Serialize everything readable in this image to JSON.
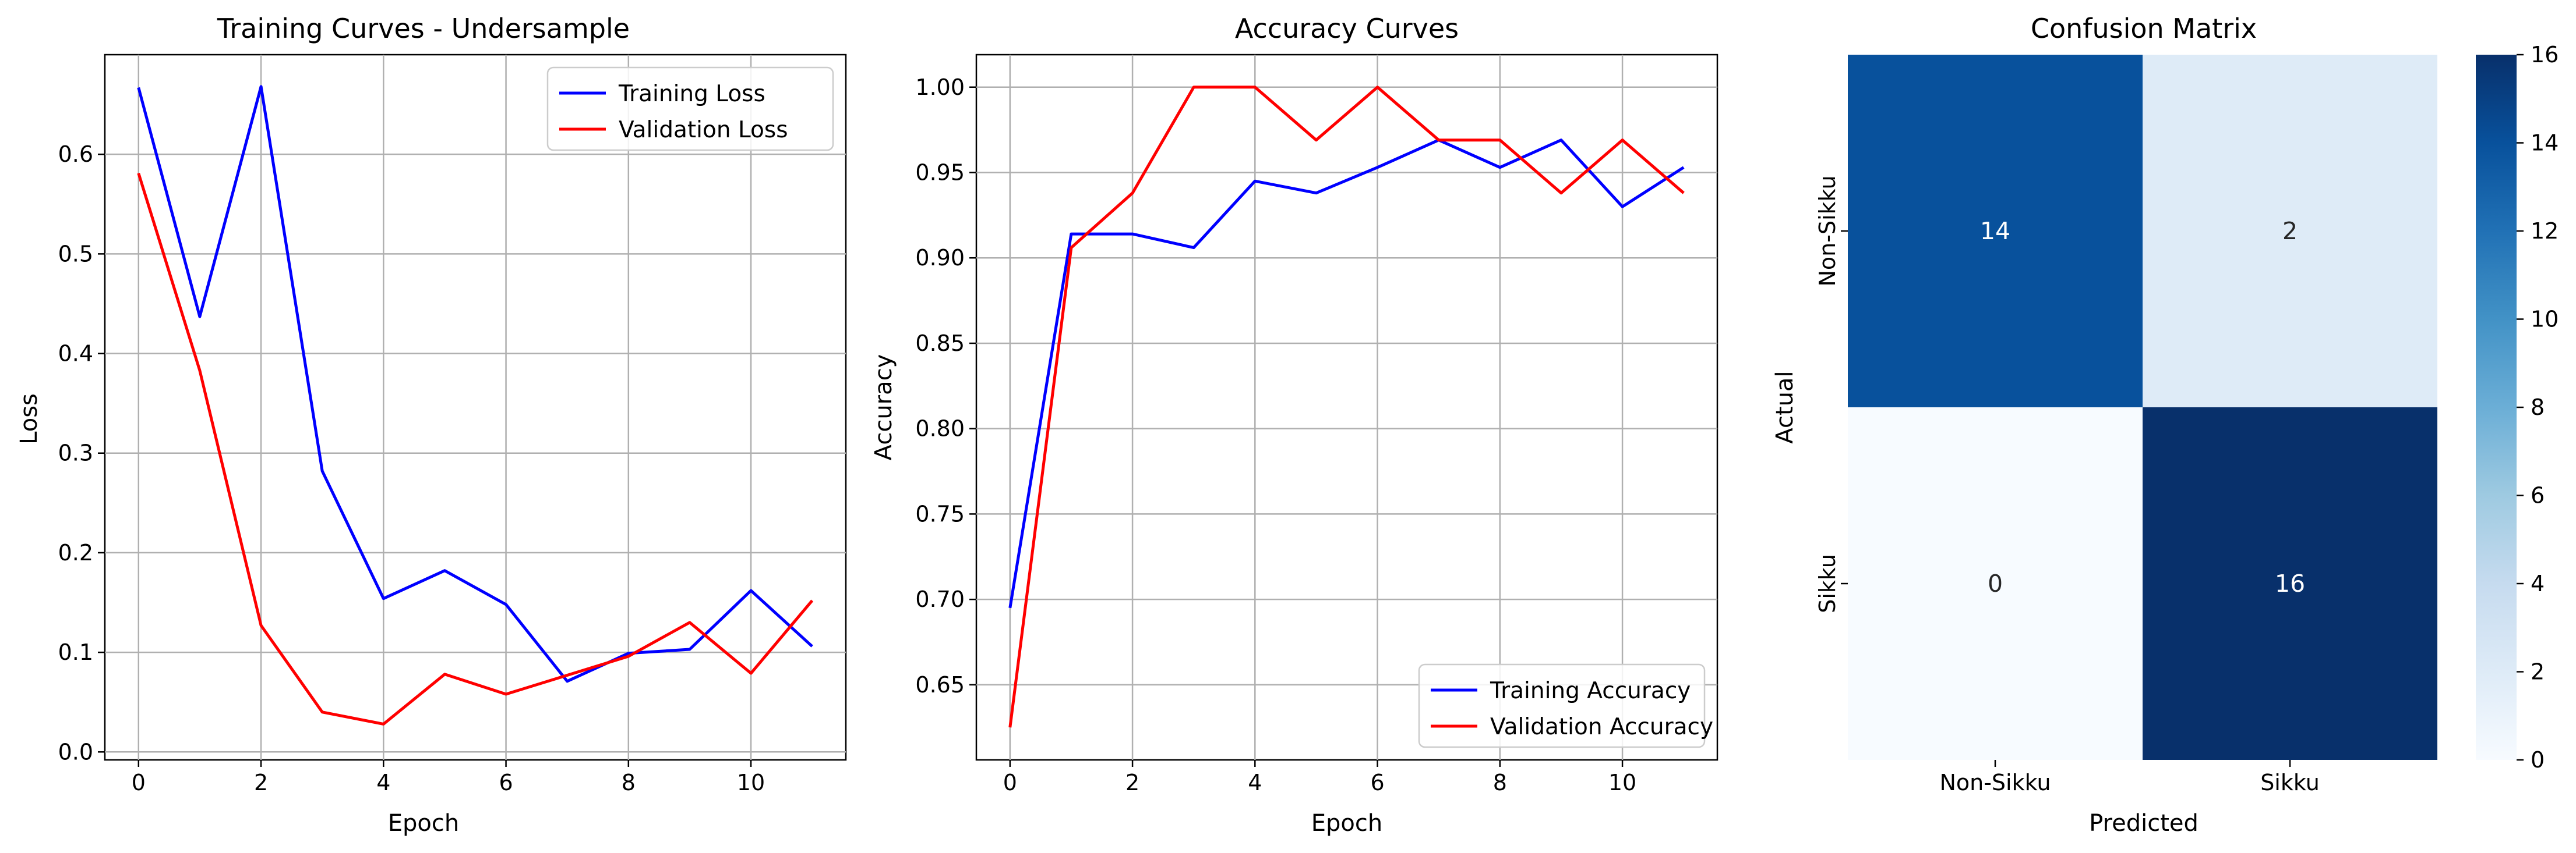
{
  "chart_data": [
    {
      "type": "line",
      "title": "Training Curves - Undersample",
      "xlabel": "Epoch",
      "ylabel": "Loss",
      "xlim": [
        -0.55,
        11.55
      ],
      "ylim": [
        -0.008,
        0.7
      ],
      "xticks": [
        "0",
        "2",
        "4",
        "6",
        "8",
        "10"
      ],
      "yticks": [
        "0.0",
        "0.1",
        "0.2",
        "0.3",
        "0.4",
        "0.5",
        "0.6"
      ],
      "grid": true,
      "legend_position": "upper right",
      "x": [
        0,
        1,
        2,
        3,
        4,
        5,
        6,
        7,
        8,
        9,
        10,
        11
      ],
      "series": [
        {
          "name": "Training Loss",
          "color": "#0000ff",
          "values": [
            0.667,
            0.437,
            0.668,
            0.282,
            0.154,
            0.182,
            0.148,
            0.071,
            0.099,
            0.103,
            0.162,
            0.106
          ]
        },
        {
          "name": "Validation Loss",
          "color": "#ff0000",
          "values": [
            0.581,
            0.383,
            0.127,
            0.04,
            0.028,
            0.078,
            0.058,
            0.077,
            0.096,
            0.13,
            0.079,
            0.152
          ]
        }
      ]
    },
    {
      "type": "line",
      "title": "Accuracy Curves",
      "xlabel": "Epoch",
      "ylabel": "Accuracy",
      "xlim": [
        -0.55,
        11.55
      ],
      "ylim": [
        0.606,
        1.019
      ],
      "xticks": [
        "0",
        "2",
        "4",
        "6",
        "8",
        "10"
      ],
      "yticks": [
        "0.65",
        "0.70",
        "0.75",
        "0.80",
        "0.85",
        "0.90",
        "0.95",
        "1.00"
      ],
      "grid": true,
      "legend_position": "lower right",
      "x": [
        0,
        1,
        2,
        3,
        4,
        5,
        6,
        7,
        8,
        9,
        10,
        11
      ],
      "series": [
        {
          "name": "Training Accuracy",
          "color": "#0000ff",
          "values": [
            0.695,
            0.914,
            0.914,
            0.906,
            0.945,
            0.938,
            0.953,
            0.969,
            0.953,
            0.969,
            0.93,
            0.953
          ]
        },
        {
          "name": "Validation Accuracy",
          "color": "#ff0000",
          "values": [
            0.625,
            0.906,
            0.938,
            1.0,
            1.0,
            0.969,
            1.0,
            0.969,
            0.969,
            0.938,
            0.969,
            0.938
          ]
        }
      ]
    },
    {
      "type": "heatmap",
      "title": "Confusion Matrix",
      "xlabel": "Predicted",
      "ylabel": "Actual",
      "x_categories": [
        "Non-Sikku",
        "Sikku"
      ],
      "y_categories": [
        "Non-Sikku",
        "Sikku"
      ],
      "values": [
        [
          14,
          2
        ],
        [
          0,
          16
        ]
      ],
      "colormap": "Blues",
      "colorbar_range": [
        0,
        16
      ],
      "colorbar_ticks": [
        "0",
        "2",
        "4",
        "6",
        "8",
        "10",
        "12",
        "14",
        "16"
      ]
    }
  ]
}
